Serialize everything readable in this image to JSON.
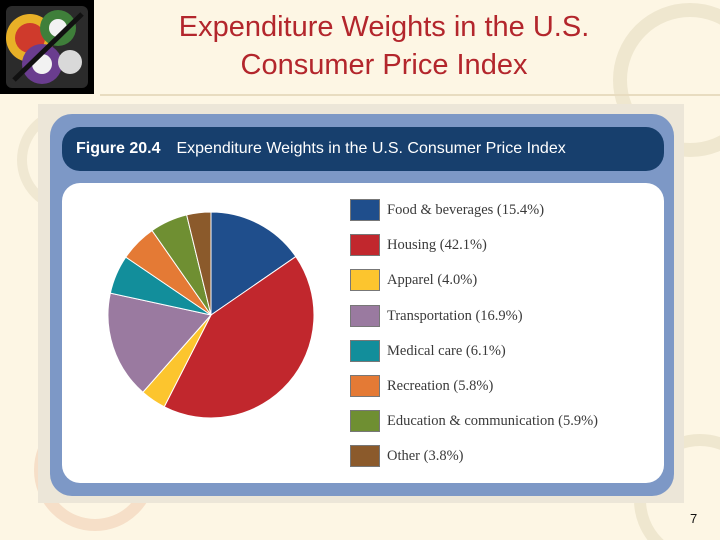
{
  "slide": {
    "title_line1": "Expenditure Weights in the U.S.",
    "title_line2": "Consumer Price Index",
    "page_number": "7"
  },
  "figure": {
    "number": "Figure 20.4",
    "caption": "Expenditure Weights in the U.S. Consumer Price Index"
  },
  "chart_data": {
    "type": "pie",
    "title": "Expenditure Weights in the U.S. Consumer Price Index",
    "start_angle": "12 o'clock",
    "direction": "clockwise",
    "legend_placement": "right",
    "slices": [
      {
        "label": "Food & beverages (15.4%)",
        "value": 15.4,
        "color": "#1f4e8c"
      },
      {
        "label": "Housing (42.1%)",
        "value": 42.1,
        "color": "#c1272d"
      },
      {
        "label": "Apparel (4.0%)",
        "value": 4.0,
        "color": "#fcc52e"
      },
      {
        "label": "Transportation (16.9%)",
        "value": 16.9,
        "color": "#9a7aa0"
      },
      {
        "label": "Medical care (6.1%)",
        "value": 6.1,
        "color": "#128e9b"
      },
      {
        "label": "Recreation (5.8%)",
        "value": 5.8,
        "color": "#e47a35"
      },
      {
        "label": "Education & communication (5.9%)",
        "value": 5.9,
        "color": "#6f8f32"
      },
      {
        "label": "Other (3.8%)",
        "value": 3.8,
        "color": "#8b5a2b"
      }
    ]
  }
}
